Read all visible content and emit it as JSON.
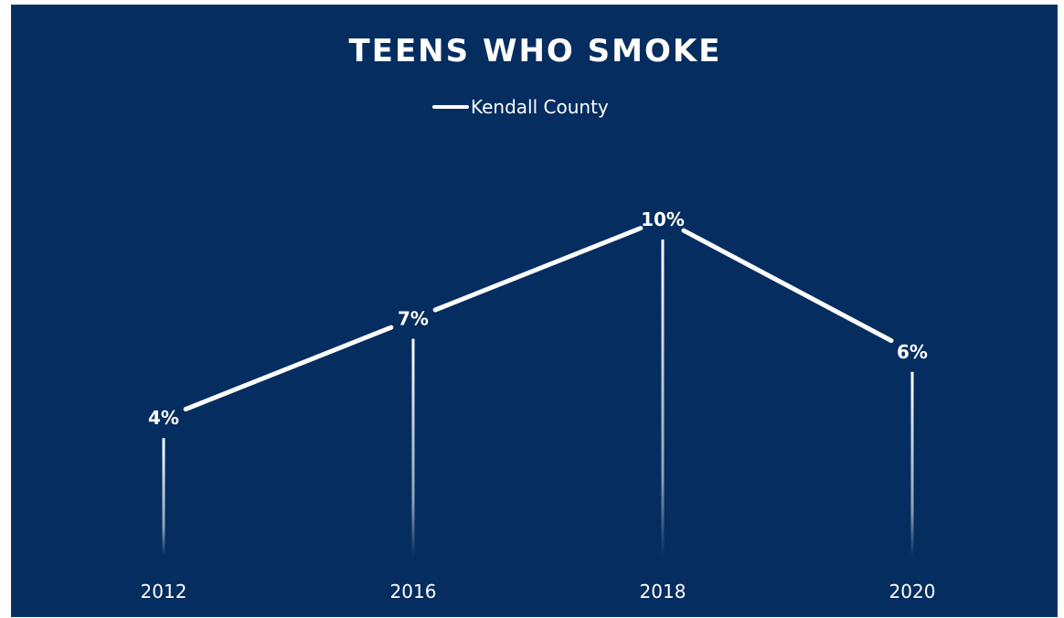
{
  "chart_data": {
    "type": "line",
    "title": "TEENS WHO SMOKE",
    "x": [
      "2012",
      "2016",
      "2018",
      "2020"
    ],
    "series": [
      {
        "name": "Kendall County",
        "values": [
          4,
          7,
          10,
          6
        ],
        "labels": [
          "4%",
          "7%",
          "10%",
          "6%"
        ]
      }
    ],
    "ylim": [
      0,
      10
    ],
    "grid": false,
    "legend_position": "top-center",
    "colors": {
      "background": "#052d5f",
      "line": "#ffffff",
      "text": "#ffffff"
    }
  }
}
